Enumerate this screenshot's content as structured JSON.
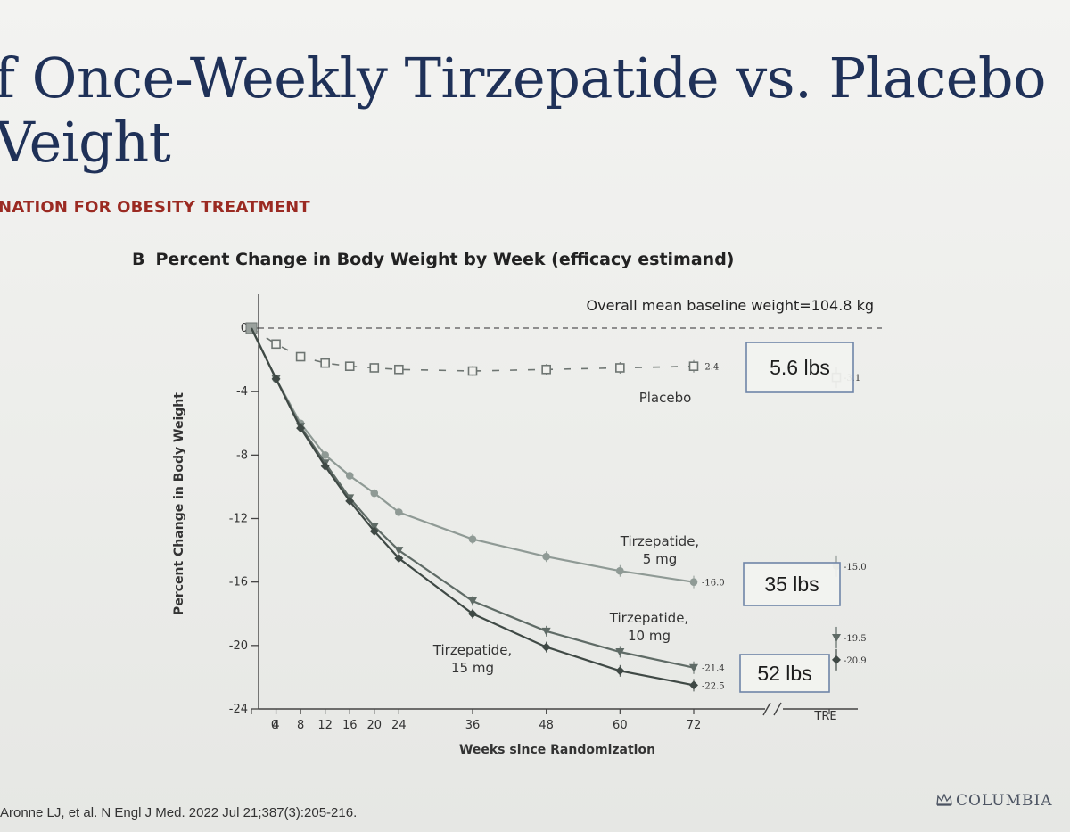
{
  "slide": {
    "title_line1": "f Once-Weekly Tirzepatide vs. Placebo",
    "title_line2": "Veight",
    "subtitle": "NATION FOR OBESITY TREATMENT",
    "citation": "Aronne LJ, et al. N Engl J Med. 2022 Jul 21;387(3):205-216.",
    "logo_text": "COLUMBIA",
    "logo_icon": "crown-icon"
  },
  "chart_data": {
    "type": "line",
    "panel_letter": "B",
    "title": "Percent Change in Body Weight by Week (efficacy estimand)",
    "xlabel": "Weeks since Randomization",
    "ylabel": "Percent Change in Body Weight",
    "xticks": [
      0,
      4,
      8,
      12,
      16,
      20,
      24,
      36,
      48,
      60,
      72
    ],
    "extra_xtick": "TRE",
    "ylim": [
      -24,
      0
    ],
    "yticks": [
      0,
      -4,
      -8,
      -12,
      -16,
      -20,
      -24
    ],
    "baseline_note": "Overall mean baseline weight=104.8 kg",
    "series": [
      {
        "name": "Placebo",
        "style": "dashed",
        "marker": "open-square",
        "color": "#6e7572",
        "x": [
          0,
          4,
          8,
          12,
          16,
          20,
          24,
          36,
          48,
          60,
          72
        ],
        "y": [
          0,
          -1.0,
          -1.8,
          -2.2,
          -2.4,
          -2.5,
          -2.6,
          -2.7,
          -2.6,
          -2.5,
          -2.4
        ],
        "end_label": "-2.4",
        "tre_value": -3.1,
        "tre_label": "-3.1"
      },
      {
        "name": "Tirzepatide, 5 mg",
        "name_line1": "Tirzepatide,",
        "name_line2": "5 mg",
        "style": "solid",
        "marker": "filled-circle",
        "color": "#8f9a95",
        "x": [
          0,
          4,
          8,
          12,
          16,
          20,
          24,
          36,
          48,
          60,
          72
        ],
        "y": [
          0,
          -3.2,
          -6.0,
          -8.0,
          -9.3,
          -10.4,
          -11.6,
          -13.3,
          -14.4,
          -15.3,
          -16.0
        ],
        "end_label": "-16.0",
        "tre_value": -15.0,
        "tre_label": "-15.0"
      },
      {
        "name": "Tirzepatide, 10 mg",
        "name_line1": "Tirzepatide,",
        "name_line2": "10 mg",
        "style": "solid",
        "marker": "filled-triangle",
        "color": "#5f6b66",
        "x": [
          0,
          4,
          8,
          12,
          16,
          20,
          24,
          36,
          48,
          60,
          72
        ],
        "y": [
          0,
          -3.2,
          -6.2,
          -8.5,
          -10.7,
          -12.5,
          -14.0,
          -17.2,
          -19.1,
          -20.4,
          -21.4
        ],
        "end_label": "-21.4",
        "tre_value": -19.5,
        "tre_label": "-19.5"
      },
      {
        "name": "Tirzepatide, 15 mg",
        "name_line1": "Tirzepatide,",
        "name_line2": "15 mg",
        "style": "solid",
        "marker": "filled-diamond",
        "color": "#3f4945",
        "x": [
          0,
          4,
          8,
          12,
          16,
          20,
          24,
          36,
          48,
          60,
          72
        ],
        "y": [
          0,
          -3.2,
          -6.3,
          -8.7,
          -10.9,
          -12.8,
          -14.5,
          -18.0,
          -20.1,
          -21.6,
          -22.5
        ],
        "end_label": "-22.5",
        "tre_value": -20.9,
        "tre_label": "-20.9"
      }
    ],
    "callouts": [
      {
        "text": "5.6 lbs",
        "series": "Placebo"
      },
      {
        "text": "35 lbs",
        "series": "Tirzepatide, 5 mg"
      },
      {
        "text": "52 lbs",
        "series": "Tirzepatide, 15 mg"
      }
    ]
  }
}
